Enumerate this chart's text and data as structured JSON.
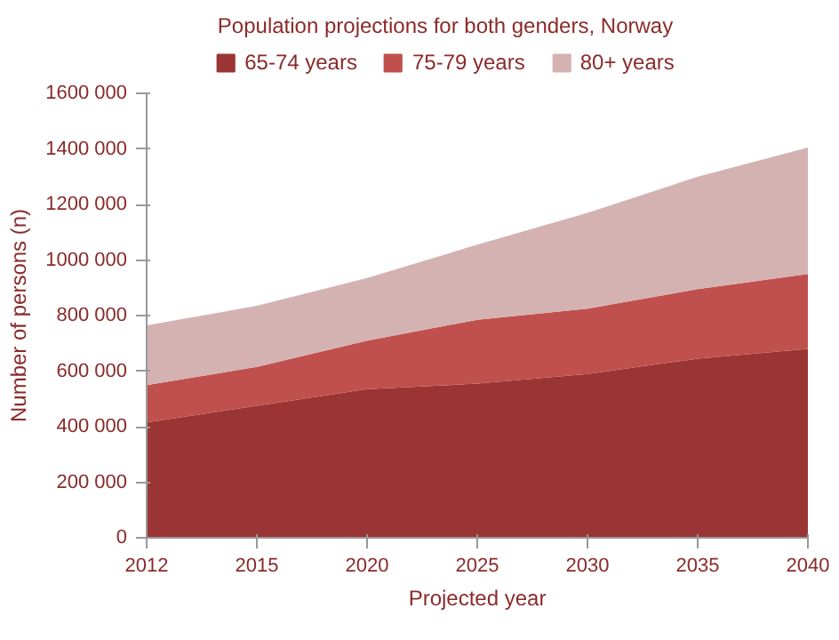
{
  "chart_data": {
    "type": "area",
    "title": "Population projections for both genders, Norway",
    "xlabel": "Projected year",
    "ylabel": "Number of persons (n)",
    "categories": [
      "2012",
      "2015",
      "2020",
      "2025",
      "2030",
      "2035",
      "2040"
    ],
    "stacked": true,
    "legend": "top",
    "grid": false,
    "ylim": [
      0,
      1600000
    ],
    "yticks": [
      {
        "value": 0,
        "label": "0"
      },
      {
        "value": 200000,
        "label": "200 000"
      },
      {
        "value": 400000,
        "label": "400 000"
      },
      {
        "value": 600000,
        "label": "600 000"
      },
      {
        "value": 800000,
        "label": "800 000"
      },
      {
        "value": 1000000,
        "label": "1000 000"
      },
      {
        "value": 1200000,
        "label": "1200 000"
      },
      {
        "value": 1400000,
        "label": "1400 000"
      },
      {
        "value": 1600000,
        "label": "1600 000"
      }
    ],
    "series": [
      {
        "name": "65-74 years",
        "color": "#9b3535",
        "values": [
          415000,
          475000,
          535000,
          555000,
          590000,
          645000,
          680000
        ]
      },
      {
        "name": "75-79 years",
        "color": "#c0504d",
        "values": [
          135000,
          140000,
          175000,
          230000,
          235000,
          250000,
          270000
        ]
      },
      {
        "name": "80+ years",
        "color": "#d5b2b2",
        "values": [
          215000,
          220000,
          225000,
          270000,
          345000,
          405000,
          455000
        ]
      }
    ]
  }
}
